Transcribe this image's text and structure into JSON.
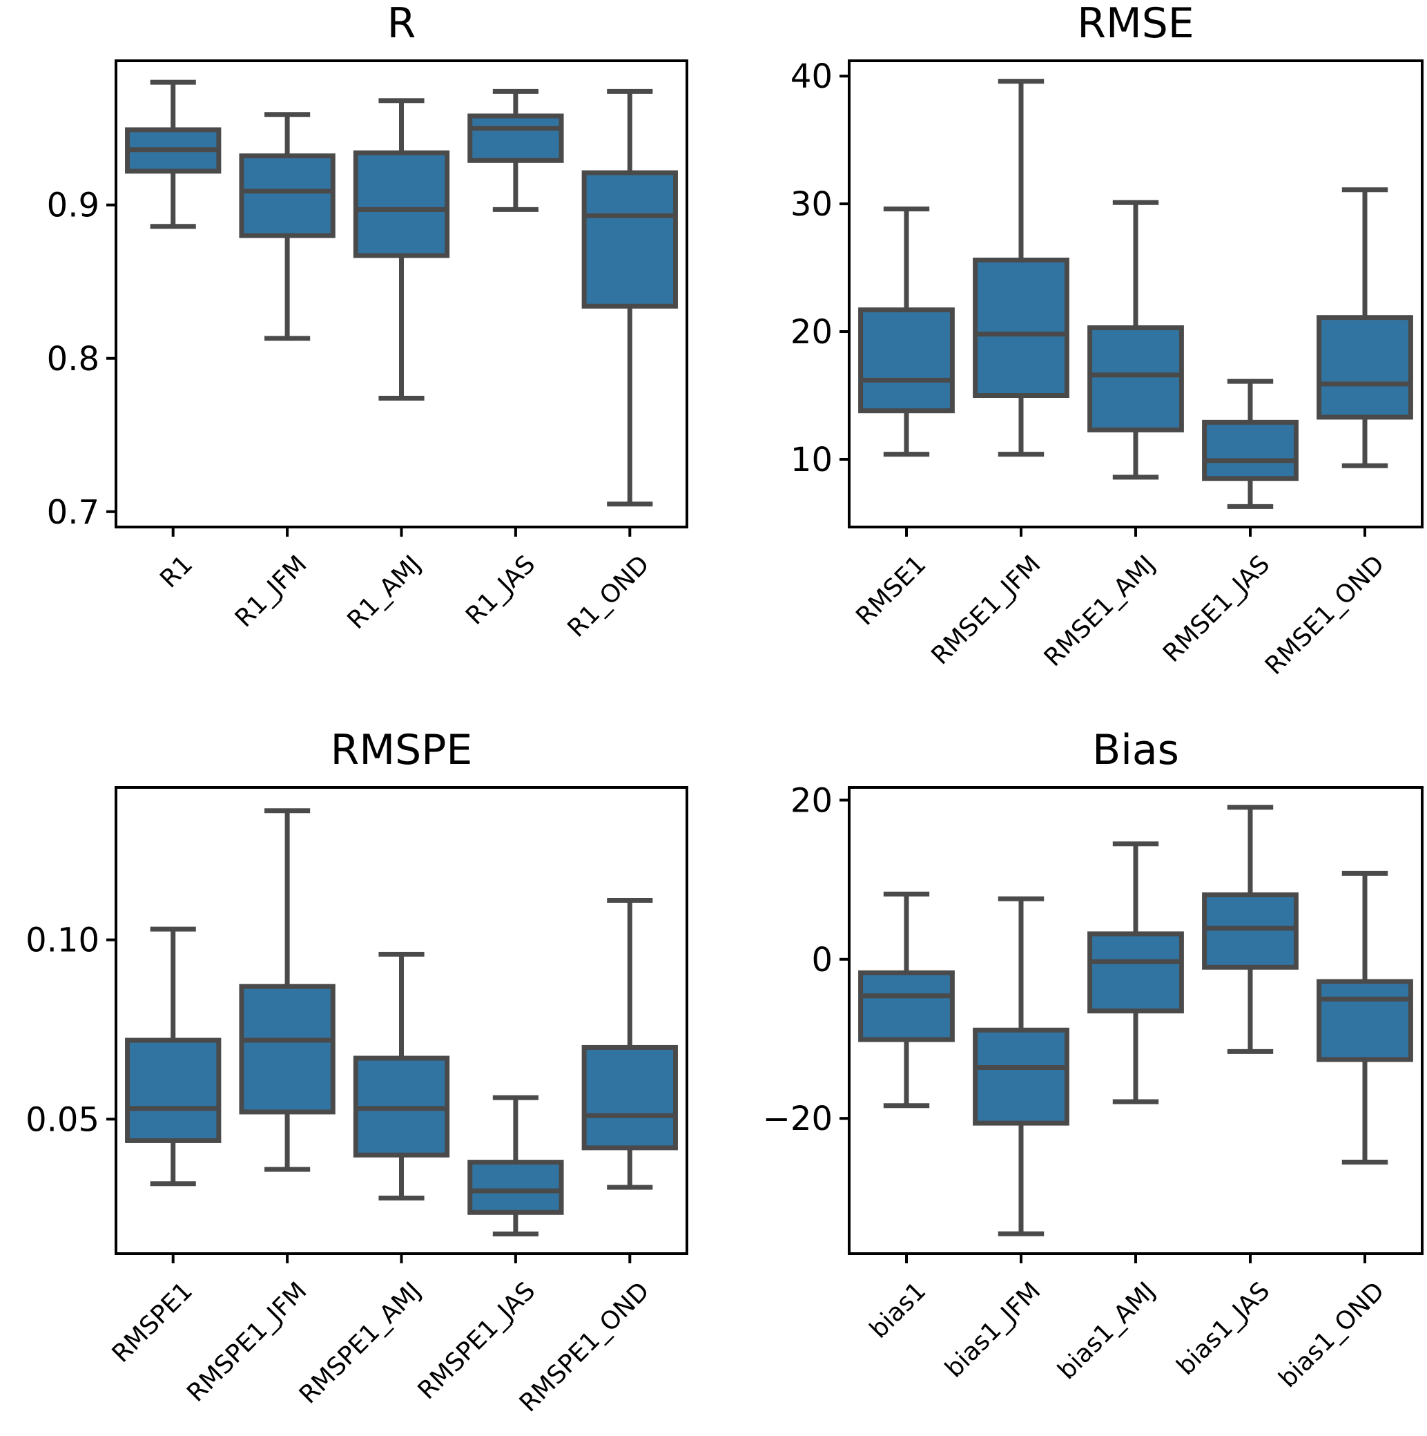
{
  "chart_data": [
    {
      "type": "box",
      "title": "R",
      "categories": [
        "R1",
        "R1_JFM",
        "R1_AMJ",
        "R1_JAS",
        "R1_OND"
      ],
      "ylim": [
        0.69,
        0.994
      ],
      "yticks": [
        0.7,
        0.8,
        0.9
      ],
      "ytick_labels": [
        "0.7",
        "0.8",
        "0.9"
      ],
      "boxes": [
        {
          "whislo": 0.886,
          "q1": 0.922,
          "med": 0.936,
          "q3": 0.949,
          "whishi": 0.98
        },
        {
          "whislo": 0.813,
          "q1": 0.88,
          "med": 0.909,
          "q3": 0.932,
          "whishi": 0.959
        },
        {
          "whislo": 0.774,
          "q1": 0.867,
          "med": 0.897,
          "q3": 0.934,
          "whishi": 0.968
        },
        {
          "whislo": 0.897,
          "q1": 0.929,
          "med": 0.95,
          "q3": 0.958,
          "whishi": 0.974
        },
        {
          "whislo": 0.705,
          "q1": 0.834,
          "med": 0.893,
          "q3": 0.921,
          "whishi": 0.974
        }
      ]
    },
    {
      "type": "box",
      "title": "RMSE",
      "categories": [
        "RMSE1",
        "RMSE1_JFM",
        "RMSE1_AMJ",
        "RMSE1_JAS",
        "RMSE1_OND"
      ],
      "ylim": [
        4.7,
        41.2
      ],
      "yticks": [
        10,
        20,
        30,
        40
      ],
      "ytick_labels": [
        "10",
        "20",
        "30",
        "40"
      ],
      "boxes": [
        {
          "whislo": 10.4,
          "q1": 13.8,
          "med": 16.2,
          "q3": 21.7,
          "whishi": 29.6
        },
        {
          "whislo": 10.4,
          "q1": 15.0,
          "med": 19.8,
          "q3": 25.6,
          "whishi": 39.6
        },
        {
          "whislo": 8.6,
          "q1": 12.3,
          "med": 16.6,
          "q3": 20.3,
          "whishi": 30.1
        },
        {
          "whislo": 6.3,
          "q1": 8.5,
          "med": 9.9,
          "q3": 12.9,
          "whishi": 16.1
        },
        {
          "whislo": 9.5,
          "q1": 13.3,
          "med": 15.9,
          "q3": 21.1,
          "whishi": 31.1
        }
      ]
    },
    {
      "type": "box",
      "title": "RMSPE",
      "categories": [
        "RMSPE1",
        "RMSPE1_JFM",
        "RMSPE1_AMJ",
        "RMSPE1_JAS",
        "RMSPE1_OND"
      ],
      "ylim": [
        0.0125,
        0.1425
      ],
      "yticks": [
        0.05,
        0.1
      ],
      "ytick_labels": [
        "0.05",
        "0.10"
      ],
      "boxes": [
        {
          "whislo": 0.032,
          "q1": 0.044,
          "med": 0.053,
          "q3": 0.072,
          "whishi": 0.103
        },
        {
          "whislo": 0.036,
          "q1": 0.052,
          "med": 0.072,
          "q3": 0.087,
          "whishi": 0.136
        },
        {
          "whislo": 0.028,
          "q1": 0.04,
          "med": 0.053,
          "q3": 0.067,
          "whishi": 0.096
        },
        {
          "whislo": 0.018,
          "q1": 0.024,
          "med": 0.03,
          "q3": 0.038,
          "whishi": 0.056
        },
        {
          "whislo": 0.031,
          "q1": 0.042,
          "med": 0.051,
          "q3": 0.07,
          "whishi": 0.111
        }
      ]
    },
    {
      "type": "box",
      "title": "Bias",
      "categories": [
        "bias1",
        "bias1_JFM",
        "bias1_AMJ",
        "bias1_JAS",
        "bias1_OND"
      ],
      "ylim": [
        -37,
        21.6
      ],
      "yticks": [
        -20,
        0,
        20
      ],
      "ytick_labels": [
        "−20",
        "0",
        "20"
      ],
      "boxes": [
        {
          "whislo": -18.4,
          "q1": -10.1,
          "med": -4.6,
          "q3": -1.7,
          "whishi": 8.2
        },
        {
          "whislo": -34.5,
          "q1": -20.6,
          "med": -13.6,
          "q3": -8.9,
          "whishi": 7.6
        },
        {
          "whislo": -17.9,
          "q1": -6.5,
          "med": -0.3,
          "q3": 3.2,
          "whishi": 14.5
        },
        {
          "whislo": -11.6,
          "q1": -1.0,
          "med": 3.9,
          "q3": 8.1,
          "whishi": 19.1
        },
        {
          "whislo": -25.5,
          "q1": -12.6,
          "med": -5.0,
          "q3": -2.8,
          "whishi": 10.8
        }
      ]
    }
  ]
}
